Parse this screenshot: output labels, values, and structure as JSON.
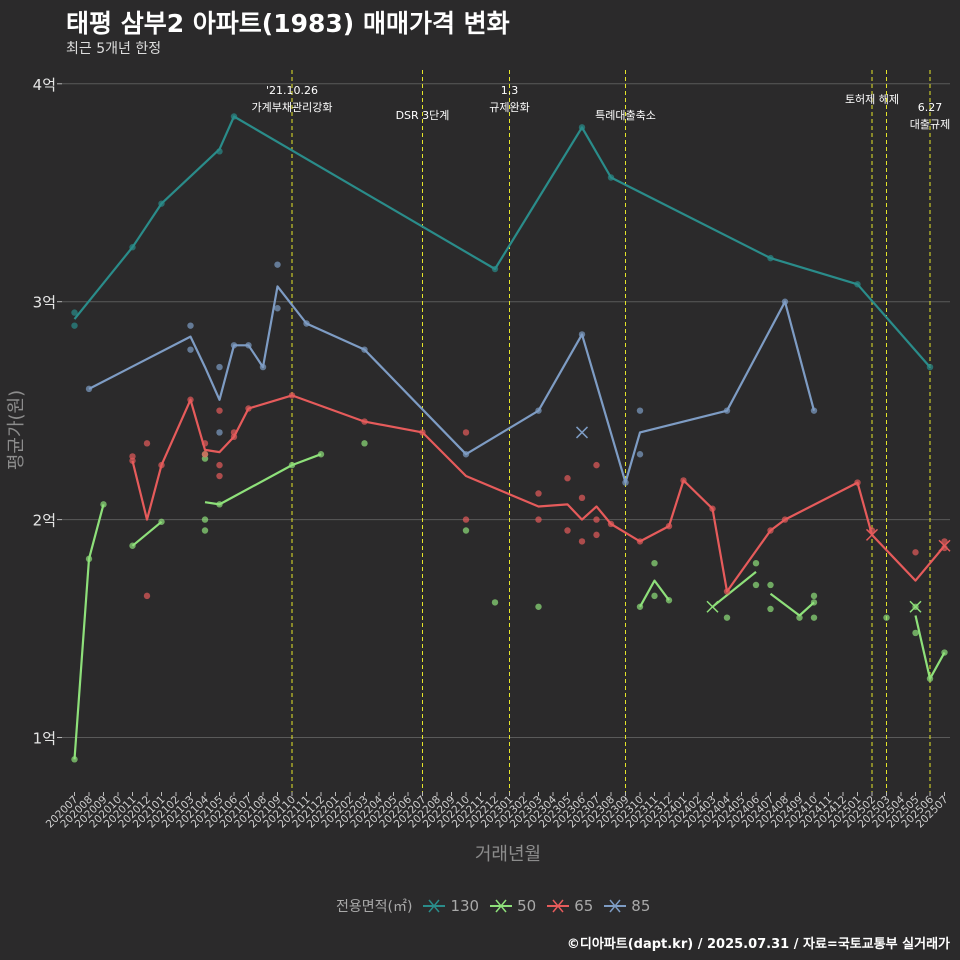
{
  "title": "태평 삼부2 아파트(1983) 매매가격 변화",
  "subtitle": "최근 5개년 한정",
  "caption": "©디아파트(dapt.kr) / 2025.07.31 / 자료=국토교통부 실거래가",
  "chart_data": {
    "type": "line",
    "title": "태평 삼부2 아파트(1983) 매매가격 변화",
    "xlabel": "거래년월",
    "ylabel": "평균가(원)",
    "ylim": [
      0.75,
      4.1
    ],
    "yticks": [
      1,
      2,
      3,
      4
    ],
    "ytick_labels": [
      "1억",
      "2억",
      "3억",
      "4억"
    ],
    "categories": [
      "202007",
      "202008",
      "202009",
      "202010",
      "202011",
      "202012",
      "202101",
      "202102",
      "202103",
      "202104",
      "202105",
      "202106",
      "202107",
      "202108",
      "202109",
      "202110",
      "202111",
      "202112",
      "202201",
      "202202",
      "202203",
      "202204",
      "202205",
      "202206",
      "202207",
      "202208",
      "202209",
      "202210",
      "202211",
      "202212",
      "202301",
      "202302",
      "202303",
      "202304",
      "202305",
      "202306",
      "202307",
      "202308",
      "202309",
      "202310",
      "202311",
      "202312",
      "202401",
      "202402",
      "202403",
      "202404",
      "202405",
      "202406",
      "202407",
      "202408",
      "202409",
      "202410",
      "202411",
      "202412",
      "202501",
      "202502",
      "202503",
      "202504",
      "202505",
      "202506",
      "202507"
    ],
    "legend_title": "전용면적(㎡)",
    "series": [
      {
        "name": "130",
        "color": "#2a8c8a",
        "line": [
          [
            "202007",
            2.92
          ],
          [
            "202011",
            3.25
          ],
          [
            "202101",
            3.45
          ],
          [
            "202105",
            3.7
          ],
          [
            "202106",
            3.85
          ],
          [
            "202212",
            3.15
          ],
          [
            "202306",
            3.8
          ],
          [
            "202308",
            3.57
          ],
          [
            "202407",
            3.2
          ],
          [
            "202501",
            3.08
          ],
          [
            "202506",
            2.7
          ]
        ],
        "points": [
          [
            "202007",
            2.95
          ],
          [
            "202007",
            2.89
          ],
          [
            "202011",
            3.25
          ],
          [
            "202101",
            3.45
          ],
          [
            "202105",
            3.69
          ],
          [
            "202106",
            3.85
          ],
          [
            "202212",
            3.15
          ],
          [
            "202306",
            3.8
          ],
          [
            "202308",
            3.57
          ],
          [
            "202407",
            3.2
          ],
          [
            "202501",
            3.08
          ],
          [
            "202506",
            2.7
          ]
        ],
        "cross": []
      },
      {
        "name": "50",
        "color": "#8ee07a",
        "line": [
          [
            "202007",
            0.9
          ],
          [
            "202008",
            1.82
          ],
          [
            "202009",
            2.07
          ],
          null,
          [
            "202011",
            1.88
          ],
          [
            "202101",
            1.99
          ],
          null,
          [
            "202104",
            2.08
          ],
          [
            "202105",
            2.07
          ],
          [
            "202110",
            2.25
          ],
          [
            "202112",
            2.3
          ],
          null,
          [
            "202310",
            1.6
          ],
          [
            "202311",
            1.72
          ],
          [
            "202312",
            1.63
          ],
          null,
          [
            "202403",
            1.6
          ],
          [
            "202406",
            1.76
          ],
          null,
          [
            "202407",
            1.66
          ],
          [
            "202409",
            1.56
          ],
          [
            "202410",
            1.62
          ],
          null,
          [
            "202505",
            1.56
          ],
          [
            "202506",
            1.27
          ],
          [
            "202507",
            1.39
          ]
        ],
        "points": [
          [
            "202007",
            0.9
          ],
          [
            "202008",
            1.82
          ],
          [
            "202009",
            2.07
          ],
          [
            "202011",
            1.88
          ],
          [
            "202101",
            1.99
          ],
          [
            "202104",
            2.3
          ],
          [
            "202104",
            2.28
          ],
          [
            "202104",
            2.0
          ],
          [
            "202104",
            1.95
          ],
          [
            "202105",
            2.07
          ],
          [
            "202110",
            2.25
          ],
          [
            "202112",
            2.3
          ],
          [
            "202203",
            2.35
          ],
          [
            "202210",
            1.95
          ],
          [
            "202212",
            1.62
          ],
          [
            "202303",
            1.6
          ],
          [
            "202310",
            1.6
          ],
          [
            "202311",
            1.8
          ],
          [
            "202311",
            1.65
          ],
          [
            "202312",
            1.63
          ],
          [
            "202404",
            1.55
          ],
          [
            "202406",
            1.8
          ],
          [
            "202406",
            1.7
          ],
          [
            "202407",
            1.7
          ],
          [
            "202407",
            1.59
          ],
          [
            "202409",
            1.55
          ],
          [
            "202410",
            1.65
          ],
          [
            "202410",
            1.62
          ],
          [
            "202410",
            1.55
          ],
          [
            "202503",
            1.55
          ],
          [
            "202505",
            1.6
          ],
          [
            "202505",
            1.48
          ],
          [
            "202506",
            1.27
          ],
          [
            "202507",
            1.39
          ]
        ],
        "cross": [
          [
            "202403",
            1.6
          ],
          [
            "202505",
            1.6
          ]
        ]
      },
      {
        "name": "65",
        "color": "#e65b5b",
        "line": [
          [
            "202011",
            2.27
          ],
          [
            "202012",
            2.0
          ],
          [
            "202101",
            2.25
          ],
          [
            "202103",
            2.55
          ],
          [
            "202104",
            2.32
          ],
          [
            "202105",
            2.31
          ],
          [
            "202106",
            2.38
          ],
          [
            "202107",
            2.51
          ],
          [
            "202110",
            2.57
          ],
          [
            "202203",
            2.45
          ],
          [
            "202207",
            2.4
          ],
          [
            "202210",
            2.2
          ],
          [
            "202303",
            2.06
          ],
          [
            "202305",
            2.07
          ],
          [
            "202306",
            2.0
          ],
          [
            "202307",
            2.06
          ],
          [
            "202308",
            1.98
          ],
          [
            "202310",
            1.9
          ],
          [
            "202312",
            1.97
          ],
          [
            "202401",
            2.18
          ],
          [
            "202403",
            2.05
          ],
          [
            "202404",
            1.67
          ],
          [
            "202407",
            1.95
          ],
          [
            "202408",
            2.0
          ],
          [
            "202501",
            2.17
          ],
          [
            "202502",
            1.93
          ],
          [
            "202505",
            1.72
          ],
          [
            "202507",
            1.88
          ]
        ],
        "points": [
          [
            "202011",
            2.29
          ],
          [
            "202011",
            2.27
          ],
          [
            "202012",
            2.35
          ],
          [
            "202012",
            1.65
          ],
          [
            "202101",
            2.25
          ],
          [
            "202103",
            2.55
          ],
          [
            "202104",
            2.35
          ],
          [
            "202104",
            2.3
          ],
          [
            "202105",
            2.5
          ],
          [
            "202105",
            2.25
          ],
          [
            "202105",
            2.2
          ],
          [
            "202106",
            2.4
          ],
          [
            "202106",
            2.38
          ],
          [
            "202107",
            2.51
          ],
          [
            "202110",
            2.57
          ],
          [
            "202203",
            2.45
          ],
          [
            "202207",
            2.4
          ],
          [
            "202210",
            2.4
          ],
          [
            "202210",
            2.0
          ],
          [
            "202303",
            2.12
          ],
          [
            "202303",
            2.0
          ],
          [
            "202305",
            2.19
          ],
          [
            "202305",
            1.95
          ],
          [
            "202306",
            2.1
          ],
          [
            "202306",
            1.9
          ],
          [
            "202307",
            2.25
          ],
          [
            "202307",
            2.0
          ],
          [
            "202307",
            1.93
          ],
          [
            "202308",
            1.98
          ],
          [
            "202310",
            1.9
          ],
          [
            "202312",
            1.97
          ],
          [
            "202401",
            2.18
          ],
          [
            "202403",
            2.05
          ],
          [
            "202404",
            1.67
          ],
          [
            "202407",
            1.95
          ],
          [
            "202408",
            2.0
          ],
          [
            "202501",
            2.17
          ],
          [
            "202502",
            1.95
          ],
          [
            "202505",
            1.85
          ],
          [
            "202507",
            1.9
          ],
          [
            "202507",
            1.87
          ]
        ],
        "cross": [
          [
            "202502",
            1.93
          ],
          [
            "202507",
            1.88
          ]
        ]
      },
      {
        "name": "85",
        "color": "#7e9cc4",
        "line": [
          [
            "202008",
            2.6
          ],
          [
            "202103",
            2.84
          ],
          [
            "202104",
            2.7
          ],
          [
            "202105",
            2.55
          ],
          [
            "202106",
            2.8
          ],
          [
            "202107",
            2.8
          ],
          [
            "202108",
            2.7
          ],
          [
            "202109",
            3.07
          ],
          [
            "202111",
            2.9
          ],
          [
            "202203",
            2.78
          ],
          [
            "202210",
            2.3
          ],
          [
            "202303",
            2.5
          ],
          [
            "202306",
            2.85
          ],
          [
            "202309",
            2.17
          ],
          [
            "202310",
            2.4
          ],
          [
            "202404",
            2.5
          ],
          [
            "202408",
            3.0
          ],
          [
            "202410",
            2.5
          ]
        ],
        "points": [
          [
            "202008",
            2.6
          ],
          [
            "202103",
            2.89
          ],
          [
            "202103",
            2.78
          ],
          [
            "202105",
            2.7
          ],
          [
            "202105",
            2.4
          ],
          [
            "202106",
            2.8
          ],
          [
            "202107",
            2.8
          ],
          [
            "202108",
            2.7
          ],
          [
            "202109",
            3.17
          ],
          [
            "202109",
            2.97
          ],
          [
            "202111",
            2.9
          ],
          [
            "202203",
            2.78
          ],
          [
            "202210",
            2.3
          ],
          [
            "202303",
            2.5
          ],
          [
            "202306",
            2.85
          ],
          [
            "202309",
            2.17
          ],
          [
            "202310",
            2.5
          ],
          [
            "202310",
            2.3
          ],
          [
            "202404",
            2.5
          ],
          [
            "202408",
            3.0
          ],
          [
            "202410",
            2.5
          ]
        ],
        "cross": [
          [
            "202306",
            2.4
          ]
        ]
      }
    ],
    "events": [
      {
        "x": "202110",
        "label": "'21.10.26\n가계부채관리강화"
      },
      {
        "x": "202207",
        "label": "DSR 3단계"
      },
      {
        "x": "202301",
        "label": "1.3\n규제완화"
      },
      {
        "x": "202309",
        "label": "특례대출축소"
      },
      {
        "x": "202502",
        "label": "토허제 해제"
      },
      {
        "x": "202503",
        "label": ""
      },
      {
        "x": "202506",
        "label": "6.27\n대출규제"
      }
    ]
  }
}
